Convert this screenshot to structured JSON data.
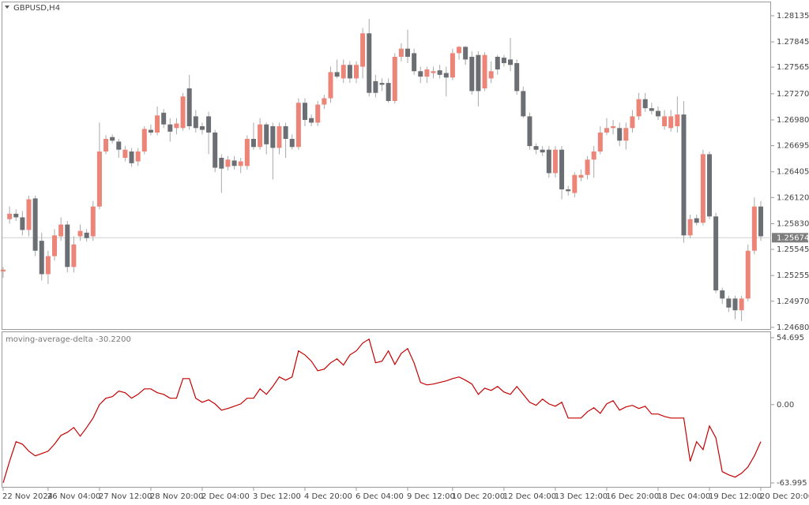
{
  "chart_data": [
    {
      "type": "candlestick",
      "title": "GBPUSD,H4",
      "categories": [
        "22 Nov 2024",
        null,
        null,
        null,
        null,
        null,
        null,
        "26 Nov 04:00",
        null,
        null,
        null,
        null,
        null,
        null,
        null,
        "27 Nov 12:00",
        null,
        null,
        null,
        null,
        null,
        null,
        null,
        "28 Nov 20:00",
        null,
        null,
        null,
        null,
        null,
        null,
        null,
        "2 Dec 04:00",
        null,
        null,
        null,
        null,
        null,
        null,
        null,
        "3 Dec 12:00",
        null,
        null,
        null,
        null,
        null,
        null,
        null,
        "4 Dec 20:00",
        null,
        null,
        null,
        null,
        null,
        null,
        null,
        "6 Dec 04:00",
        null,
        null,
        null,
        null,
        null,
        null,
        null,
        "9 Dec 12:00",
        null,
        null,
        null,
        null,
        null,
        null,
        "10 Dec 20:00",
        null,
        null,
        null,
        null,
        null,
        null,
        null,
        "12 Dec 04:00",
        null,
        null,
        null,
        null,
        null,
        null,
        null,
        "13 Dec 12:00",
        null,
        null,
        null,
        null,
        null,
        null,
        null,
        "16 Dec 20:00",
        null,
        null,
        null,
        null,
        null,
        null,
        null,
        "18 Dec 04:00",
        null,
        null,
        null,
        null,
        null,
        null,
        null,
        "19 Dec 12:00",
        null,
        null,
        null,
        null,
        null,
        null,
        null,
        "20 Dec 20:00"
      ],
      "open": [
        1.253,
        1.2588,
        1.2594,
        1.259,
        1.2576,
        1.2611,
        1.2564,
        1.2527,
        1.2547,
        1.2569,
        1.2582,
        1.2535,
        1.2569,
        1.2573,
        1.2569,
        1.2602,
        1.2663,
        1.2679,
        1.2674,
        1.2656,
        1.2663,
        1.2652,
        1.2663,
        1.2687,
        1.2684,
        1.2706,
        1.2693,
        1.2689,
        1.2689,
        1.2733,
        1.2702,
        1.2691,
        1.2702,
        1.2684,
        1.2656,
        1.2646,
        1.2653,
        1.2647,
        1.2647,
        1.2677,
        1.2668,
        1.2693,
        1.2691,
        1.2667,
        1.2691,
        1.2677,
        1.2668,
        1.2717,
        1.27,
        1.2695,
        1.2715,
        1.2722,
        1.2751,
        1.2744,
        1.2759,
        1.2744,
        1.2757,
        1.2794,
        1.2741,
        1.2739,
        1.2739,
        1.2719,
        1.2768,
        1.2777,
        1.2772,
        1.2752,
        1.2746,
        1.275,
        1.2753,
        1.275,
        1.2745,
        1.2772,
        1.2779,
        1.2768,
        1.277,
        1.2733,
        1.2744,
        1.2768,
        1.2767,
        1.2765,
        1.2761,
        1.273,
        1.2702,
        1.2669,
        1.2665,
        1.2665,
        1.2639,
        1.2665,
        1.2621,
        1.2617,
        1.2634,
        1.2637,
        1.2654,
        1.2663,
        1.2684,
        1.2689,
        1.2689,
        1.2675,
        1.2689,
        1.2702,
        1.2721,
        1.2711,
        1.2708,
        1.2691,
        1.2689,
        1.2691,
        1.2704,
        1.257,
        1.2589,
        1.2584,
        1.266,
        1.2591,
        1.2509,
        1.25,
        1.25,
        1.2487,
        1.25,
        1.2553,
        1.2602
      ],
      "high": [
        1.2535,
        1.2602,
        1.2599,
        1.2597,
        1.2614,
        1.2614,
        1.2573,
        1.2553,
        1.2577,
        1.259,
        1.2586,
        1.2569,
        1.2582,
        1.2577,
        1.2608,
        1.2695,
        1.2681,
        1.2682,
        1.2677,
        1.2669,
        1.2667,
        1.2667,
        1.2691,
        1.2693,
        1.2713,
        1.271,
        1.27,
        1.27,
        1.2728,
        1.2748,
        1.2709,
        1.2695,
        1.2707,
        1.2687,
        1.266,
        1.2658,
        1.2658,
        1.2656,
        1.2681,
        1.2695,
        1.27,
        1.2695,
        1.2695,
        1.2695,
        1.2695,
        1.2682,
        1.2722,
        1.2722,
        1.2704,
        1.2719,
        1.2726,
        1.2757,
        1.2765,
        1.2765,
        1.2763,
        1.2763,
        1.28,
        1.281,
        1.2748,
        1.2744,
        1.2744,
        1.2772,
        1.2783,
        1.2798,
        1.2777,
        1.2757,
        1.2757,
        1.2757,
        1.2759,
        1.2757,
        1.2777,
        1.278,
        1.278,
        1.2774,
        1.2774,
        1.2773,
        1.2763,
        1.277,
        1.277,
        1.2789,
        1.2765,
        1.2735,
        1.2706,
        1.2672,
        1.2669,
        1.2669,
        1.2669,
        1.2669,
        1.2625,
        1.264,
        1.2643,
        1.2658,
        1.2669,
        1.2691,
        1.27,
        1.2698,
        1.2695,
        1.2695,
        1.2709,
        1.2728,
        1.2728,
        1.2717,
        1.2713,
        1.2709,
        1.2709,
        1.2724,
        1.2719,
        1.2593,
        1.2593,
        1.2665,
        1.2663,
        1.2595,
        1.2512,
        1.2503,
        1.2503,
        1.2503,
        1.256,
        1.2612,
        1.2608
      ],
      "low": [
        1.2523,
        1.2583,
        1.2586,
        1.257,
        1.2569,
        1.2547,
        1.252,
        1.2516,
        1.2542,
        1.2564,
        1.2529,
        1.2529,
        1.2564,
        1.2563,
        1.2564,
        1.2599,
        1.266,
        1.2672,
        1.2656,
        1.2652,
        1.2646,
        1.2647,
        1.266,
        1.2681,
        1.2681,
        1.2689,
        1.2674,
        1.2682,
        1.2686,
        1.2687,
        1.2684,
        1.2682,
        1.266,
        1.264,
        1.2617,
        1.2642,
        1.2643,
        1.2639,
        1.2643,
        1.2665,
        1.2665,
        1.266,
        1.2632,
        1.266,
        1.2656,
        1.2665,
        1.2665,
        1.2691,
        1.2691,
        1.2691,
        1.271,
        1.2717,
        1.2744,
        1.2739,
        1.2739,
        1.2739,
        1.2744,
        1.2724,
        1.2723,
        1.273,
        1.2717,
        1.2716,
        1.2763,
        1.2761,
        1.2748,
        1.2739,
        1.2739,
        1.2744,
        1.2744,
        1.2724,
        1.2742,
        1.2765,
        1.2759,
        1.2726,
        1.2713,
        1.273,
        1.2739,
        1.2748,
        1.2757,
        1.2752,
        1.2726,
        1.27,
        1.2665,
        1.266,
        1.2658,
        1.2634,
        1.2634,
        1.261,
        1.2614,
        1.2612,
        1.263,
        1.2632,
        1.2634,
        1.266,
        1.2681,
        1.2682,
        1.2669,
        1.2665,
        1.2684,
        1.2698,
        1.2707,
        1.2704,
        1.2698,
        1.2687,
        1.2685,
        1.2684,
        1.2562,
        1.2567,
        1.2581,
        1.2581,
        1.2588,
        1.2506,
        1.2494,
        1.2485,
        1.2477,
        1.2475,
        1.2497,
        1.2549,
        1.2564
      ],
      "close": [
        1.2532,
        1.2594,
        1.259,
        1.2576,
        1.261,
        1.2553,
        1.2527,
        1.2547,
        1.257,
        1.2582,
        1.2535,
        1.256,
        1.2575,
        1.2567,
        1.2602,
        1.2663,
        1.2677,
        1.2675,
        1.2665,
        1.2665,
        1.265,
        1.2663,
        1.2688,
        1.2684,
        1.2703,
        1.2693,
        1.2685,
        1.2694,
        1.2724,
        1.2691,
        1.2689,
        1.2687,
        1.2684,
        1.2645,
        1.2644,
        1.2654,
        1.2647,
        1.2652,
        1.2677,
        1.2668,
        1.2693,
        1.2671,
        1.2667,
        1.2691,
        1.2677,
        1.2668,
        1.2717,
        1.2698,
        1.2695,
        1.2715,
        1.2722,
        1.2751,
        1.2746,
        1.2759,
        1.2744,
        1.2759,
        1.2794,
        1.2728,
        1.2728,
        1.2737,
        1.2719,
        1.2768,
        1.2777,
        1.2768,
        1.2752,
        1.2746,
        1.2754,
        1.2752,
        1.2748,
        1.2745,
        1.2772,
        1.2779,
        1.2765,
        1.273,
        1.273,
        1.277,
        1.2752,
        1.2754,
        1.2761,
        1.2759,
        1.273,
        1.2702,
        1.2669,
        1.2665,
        1.2662,
        1.2639,
        1.2665,
        1.2621,
        1.2619,
        1.2637,
        1.2637,
        1.2654,
        1.2663,
        1.2684,
        1.2689,
        1.2691,
        1.2675,
        1.2689,
        1.2702,
        1.2721,
        1.2711,
        1.2708,
        1.2702,
        1.2702,
        1.2702,
        1.2704,
        1.257,
        1.2588,
        1.2584,
        1.266,
        1.2591,
        1.2509,
        1.25,
        1.249,
        1.2487,
        1.25,
        1.2553,
        1.2602,
        1.2569
      ],
      "up_color": "#ec8478",
      "down_color": "#6b6e73",
      "wick_color": "#a8a8a8",
      "ylim": [
        1.24653,
        1.28292
      ],
      "yticks": [
        1.28135,
        1.27845,
        1.27565,
        {
          "value": 1.2727,
          "label": "1.27270"
        },
        {
          "value": 1.2698,
          "label": "1.26980"
        },
        1.26695,
        1.26405,
        {
          "value": 1.2612,
          "label": "1.26120"
        },
        {
          "value": 1.2583,
          "label": "1.25830"
        },
        1.25545,
        1.25255,
        {
          "value": 1.2497,
          "label": "1.24970"
        },
        {
          "value": 1.2468,
          "label": "1.24680"
        }
      ],
      "last_price": 1.25674,
      "last_price_color": "#7d7d7d"
    },
    {
      "type": "line",
      "title": "moving-average-delta -30.2200",
      "color": "#c40000",
      "values": [
        -63.9,
        -46.4,
        -30.3,
        -32.3,
        -38.1,
        -41.9,
        -40.0,
        -38.1,
        -32.3,
        -25.2,
        -22.6,
        -18.7,
        -25.8,
        -18.7,
        -11.0,
        0.0,
        5.2,
        6.5,
        11.0,
        9.7,
        5.2,
        8.4,
        12.9,
        12.9,
        9.7,
        8.4,
        5.2,
        5.2,
        21.3,
        21.3,
        5.2,
        1.9,
        3.9,
        0.6,
        -4.5,
        -3.2,
        -1.3,
        0.6,
        5.2,
        5.2,
        12.9,
        8.4,
        14.8,
        22.6,
        20.0,
        22.6,
        43.9,
        40.6,
        35.5,
        27.7,
        29.0,
        34.2,
        37.4,
        32.3,
        40.6,
        43.9,
        50.3,
        53.5,
        34.2,
        35.5,
        43.9,
        32.9,
        41.9,
        45.8,
        34.2,
        18.1,
        16.1,
        16.8,
        18.1,
        19.4,
        21.3,
        22.6,
        20.0,
        16.8,
        8.4,
        13.5,
        11.6,
        14.8,
        10.3,
        8.4,
        14.8,
        8.4,
        1.9,
        -0.6,
        4.5,
        0.6,
        -1.3,
        1.9,
        -11.0,
        -11.0,
        -11.0,
        -5.8,
        -2.6,
        -7.1,
        0.6,
        3.2,
        -4.5,
        -1.9,
        -0.6,
        -3.2,
        -1.3,
        -7.7,
        -7.7,
        -9.7,
        -11.0,
        -11.0,
        -11.0,
        -46.4,
        -30.3,
        -36.8,
        -17.4,
        -27.1,
        -54.8,
        -57.4,
        -59.3,
        -56.1,
        -51.0,
        -41.9,
        -30.22
      ],
      "ylim": [
        -67.87,
        59.85
      ],
      "yticks": [
        54.695,
        {
          "value": 0,
          "label": "0.00"
        },
        -63.995
      ]
    }
  ]
}
